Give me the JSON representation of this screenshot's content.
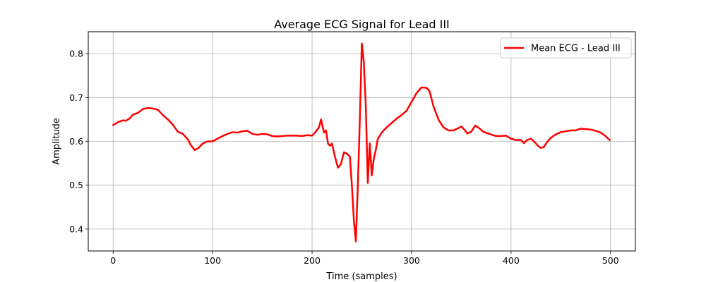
{
  "chart_data": {
    "type": "line",
    "title": "Average ECG Signal for Lead III",
    "xlabel": "Time (samples)",
    "ylabel": "Amplitude",
    "xlim": [
      -25,
      525
    ],
    "ylim": [
      0.35,
      0.85
    ],
    "xticks": [
      0,
      100,
      200,
      300,
      400,
      500
    ],
    "xtick_labels": [
      "0",
      "100",
      "200",
      "300",
      "400",
      "500"
    ],
    "yticks": [
      0.4,
      0.5,
      0.6,
      0.7,
      0.8
    ],
    "ytick_labels": [
      "0.4",
      "0.5",
      "0.6",
      "0.7",
      "0.8"
    ],
    "grid": true,
    "legend_position": "top-right",
    "series": [
      {
        "name": "Mean ECG - Lead III",
        "color": "#ff0000",
        "x": [
          0,
          5,
          10,
          13,
          17,
          20,
          25,
          30,
          35,
          40,
          45,
          50,
          55,
          60,
          65,
          70,
          75,
          78,
          82,
          86,
          90,
          95,
          100,
          105,
          110,
          115,
          120,
          125,
          130,
          135,
          140,
          145,
          150,
          155,
          160,
          165,
          170,
          175,
          180,
          185,
          190,
          195,
          200,
          203,
          207,
          209,
          212,
          214,
          216,
          218,
          220,
          223,
          226,
          229,
          232,
          235,
          238,
          240,
          242,
          244,
          246,
          248,
          250,
          252,
          254,
          256,
          258,
          260,
          262,
          264,
          266,
          270,
          275,
          280,
          285,
          290,
          295,
          300,
          305,
          310,
          315,
          318,
          322,
          327,
          332,
          337,
          342,
          347,
          350,
          353,
          356,
          360,
          364,
          368,
          372,
          378,
          385,
          390,
          395,
          400,
          405,
          410,
          413,
          416,
          420,
          423,
          427,
          430,
          433,
          436,
          440,
          445,
          450,
          455,
          460,
          465,
          470,
          475,
          480,
          485,
          490,
          495,
          499
        ],
        "y": [
          0.637,
          0.644,
          0.648,
          0.647,
          0.653,
          0.661,
          0.665,
          0.674,
          0.676,
          0.675,
          0.672,
          0.66,
          0.65,
          0.638,
          0.622,
          0.617,
          0.605,
          0.592,
          0.58,
          0.585,
          0.595,
          0.6,
          0.6,
          0.606,
          0.612,
          0.617,
          0.621,
          0.62,
          0.623,
          0.624,
          0.617,
          0.615,
          0.617,
          0.616,
          0.612,
          0.611,
          0.612,
          0.613,
          0.613,
          0.613,
          0.612,
          0.614,
          0.613,
          0.62,
          0.632,
          0.65,
          0.62,
          0.625,
          0.595,
          0.59,
          0.595,
          0.565,
          0.54,
          0.548,
          0.575,
          0.572,
          0.565,
          0.5,
          0.42,
          0.372,
          0.5,
          0.65,
          0.823,
          0.78,
          0.68,
          0.505,
          0.595,
          0.522,
          0.56,
          0.58,
          0.605,
          0.62,
          0.632,
          0.642,
          0.652,
          0.66,
          0.67,
          0.69,
          0.71,
          0.723,
          0.722,
          0.715,
          0.68,
          0.65,
          0.632,
          0.625,
          0.625,
          0.63,
          0.634,
          0.627,
          0.618,
          0.622,
          0.636,
          0.63,
          0.622,
          0.617,
          0.612,
          0.612,
          0.613,
          0.606,
          0.603,
          0.603,
          0.596,
          0.603,
          0.606,
          0.6,
          0.59,
          0.585,
          0.587,
          0.598,
          0.608,
          0.616,
          0.621,
          0.623,
          0.625,
          0.625,
          0.629,
          0.628,
          0.627,
          0.624,
          0.62,
          0.612,
          0.603
        ]
      }
    ]
  }
}
